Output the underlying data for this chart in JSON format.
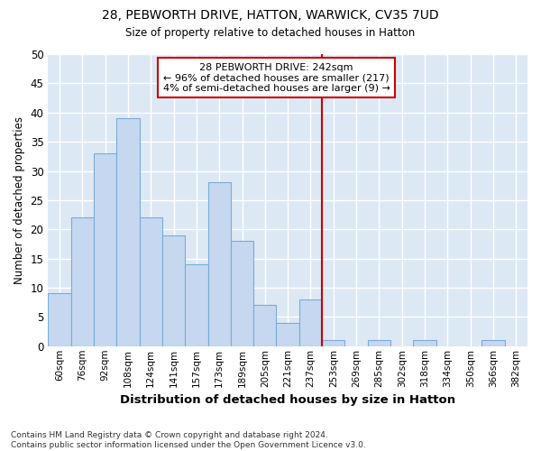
{
  "title1": "28, PEBWORTH DRIVE, HATTON, WARWICK, CV35 7UD",
  "title2": "Size of property relative to detached houses in Hatton",
  "xlabel": "Distribution of detached houses by size in Hatton",
  "ylabel": "Number of detached properties",
  "footer1": "Contains HM Land Registry data © Crown copyright and database right 2024.",
  "footer2": "Contains public sector information licensed under the Open Government Licence v3.0.",
  "bin_labels": [
    "60sqm",
    "76sqm",
    "92sqm",
    "108sqm",
    "124sqm",
    "141sqm",
    "157sqm",
    "173sqm",
    "189sqm",
    "205sqm",
    "221sqm",
    "237sqm",
    "253sqm",
    "269sqm",
    "285sqm",
    "302sqm",
    "318sqm",
    "334sqm",
    "350sqm",
    "366sqm",
    "382sqm"
  ],
  "values": [
    9,
    22,
    33,
    39,
    22,
    19,
    14,
    28,
    18,
    7,
    4,
    8,
    1,
    0,
    1,
    0,
    1,
    0,
    0,
    1,
    0
  ],
  "bar_color": "#c5d8f0",
  "bar_edgecolor": "#7aadd4",
  "bg_color": "#dde8f5",
  "grid_color": "#ffffff",
  "vline_color": "#cc0000",
  "annotation_title": "28 PEBWORTH DRIVE: 242sqm",
  "annotation_line1": "← 96% of detached houses are smaller (217)",
  "annotation_line2": "4% of semi-detached houses are larger (9) →",
  "annotation_box_color": "#ffffff",
  "annotation_box_edgecolor": "#cc0000",
  "ylim": [
    0,
    50
  ],
  "yticks": [
    0,
    5,
    10,
    15,
    20,
    25,
    30,
    35,
    40,
    45,
    50
  ],
  "fig_bg": "#ffffff"
}
